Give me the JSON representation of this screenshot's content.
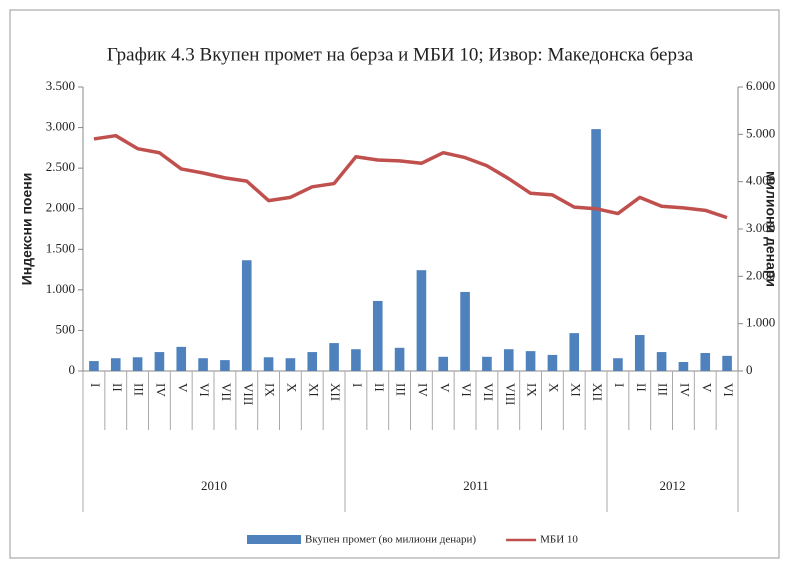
{
  "chart_data": {
    "type": "bar",
    "title": "График 4.3 Вкупен промет на берза и МБИ 10; Извор: Македонска берза",
    "y_label": "Индексни поени",
    "y2_label": "милиони денари",
    "groups": [
      {
        "label": "2010",
        "categories": [
          "I",
          "II",
          "III",
          "IV",
          "V",
          "VI",
          "VII",
          "VIII",
          "IX",
          "X",
          "XI",
          "XII"
        ]
      },
      {
        "label": "2011",
        "categories": [
          "I",
          "II",
          "III",
          "IV",
          "V",
          "VI",
          "VII",
          "VIII",
          "IX",
          "X",
          "XI",
          "XII"
        ]
      },
      {
        "label": "2012",
        "categories": [
          "I",
          "II",
          "III",
          "IV",
          "V",
          "VI"
        ]
      }
    ],
    "series": [
      {
        "name": "Вкупен промет (во милиони денари)",
        "type": "bar",
        "axis": "y2",
        "color": "#4f81bd",
        "values": [
          210,
          270,
          290,
          400,
          510,
          270,
          230,
          2340,
          290,
          270,
          400,
          590,
          460,
          1480,
          490,
          2130,
          300,
          1670,
          300,
          460,
          420,
          340,
          800,
          5110,
          270,
          760,
          400,
          190,
          380,
          320
        ]
      },
      {
        "name": "МБИ 10",
        "type": "line",
        "color": "#c0504d",
        "values": [
          2860,
          2900,
          2740,
          2690,
          2490,
          2440,
          2380,
          2340,
          2100,
          2140,
          2270,
          2310,
          2640,
          2600,
          2590,
          2560,
          2690,
          2630,
          2530,
          2370,
          2190,
          2170,
          2020,
          2000,
          1940,
          2140,
          2030,
          2010,
          1980,
          1890
        ]
      }
    ],
    "ylim": [
      0,
      3500
    ],
    "yticks": [
      {
        "value": 0,
        "label": "0"
      },
      {
        "value": 500,
        "label": "500"
      },
      {
        "value": 1000,
        "label": "1.000"
      },
      {
        "value": 1500,
        "label": "1.500"
      },
      {
        "value": 2000,
        "label": "2.000"
      },
      {
        "value": 2500,
        "label": "2.500"
      },
      {
        "value": 3000,
        "label": "3.000"
      },
      {
        "value": 3500,
        "label": "3.500"
      }
    ],
    "y2lim": [
      0,
      6000
    ],
    "y2ticks": [
      {
        "value": 0,
        "label": "0"
      },
      {
        "value": 1000,
        "label": "1.000"
      },
      {
        "value": 2000,
        "label": "2.000"
      },
      {
        "value": 3000,
        "label": "3.000"
      },
      {
        "value": 4000,
        "label": "4.000"
      },
      {
        "value": 5000,
        "label": "5.000"
      },
      {
        "value": 6000,
        "label": "6.000"
      }
    ],
    "legend": "bottom",
    "grid": false
  }
}
